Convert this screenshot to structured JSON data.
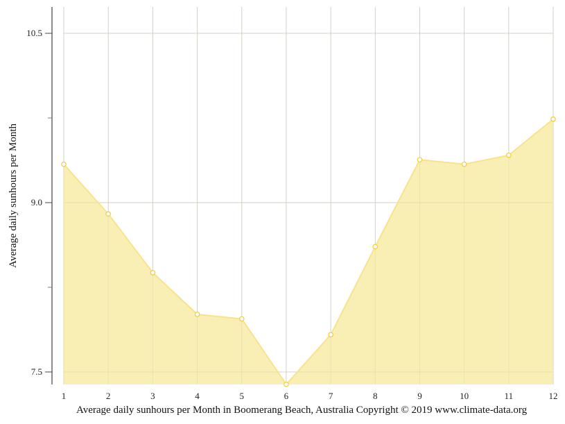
{
  "chart_data": {
    "type": "area",
    "title": "",
    "caption": "Average daily sunhours per Month in Boomerang Beach, Australia Copyright © 2019 www.climate-data.org",
    "xlabel": "",
    "ylabel": "Average daily sunhours per Month",
    "categories": [
      "1",
      "2",
      "3",
      "4",
      "5",
      "6",
      "7",
      "8",
      "9",
      "10",
      "11",
      "12"
    ],
    "x": [
      1,
      2,
      3,
      4,
      5,
      6,
      7,
      8,
      9,
      10,
      11,
      12
    ],
    "series": [
      {
        "name": "Average daily sunhours",
        "values": [
          9.34,
          8.9,
          8.38,
          8.01,
          7.97,
          7.39,
          7.83,
          8.61,
          9.38,
          9.34,
          9.42,
          9.74
        ]
      }
    ],
    "ylim": [
      7.39,
      10.73
    ],
    "y_ticks_major": [
      7.5,
      9.0,
      10.5
    ],
    "y_tick_labels": [
      "7.5",
      "9.0",
      "10.5"
    ],
    "y_ticks_minor": [
      8.25,
      9.75
    ],
    "grid": true,
    "legend": null,
    "colors": {
      "fill": "#f9eeb0",
      "line": "#f7e38d",
      "marker_stroke": "#f0cf45",
      "marker_fill": "#ffffff",
      "grid": "#d8d8d8",
      "axis": "#666666"
    }
  }
}
